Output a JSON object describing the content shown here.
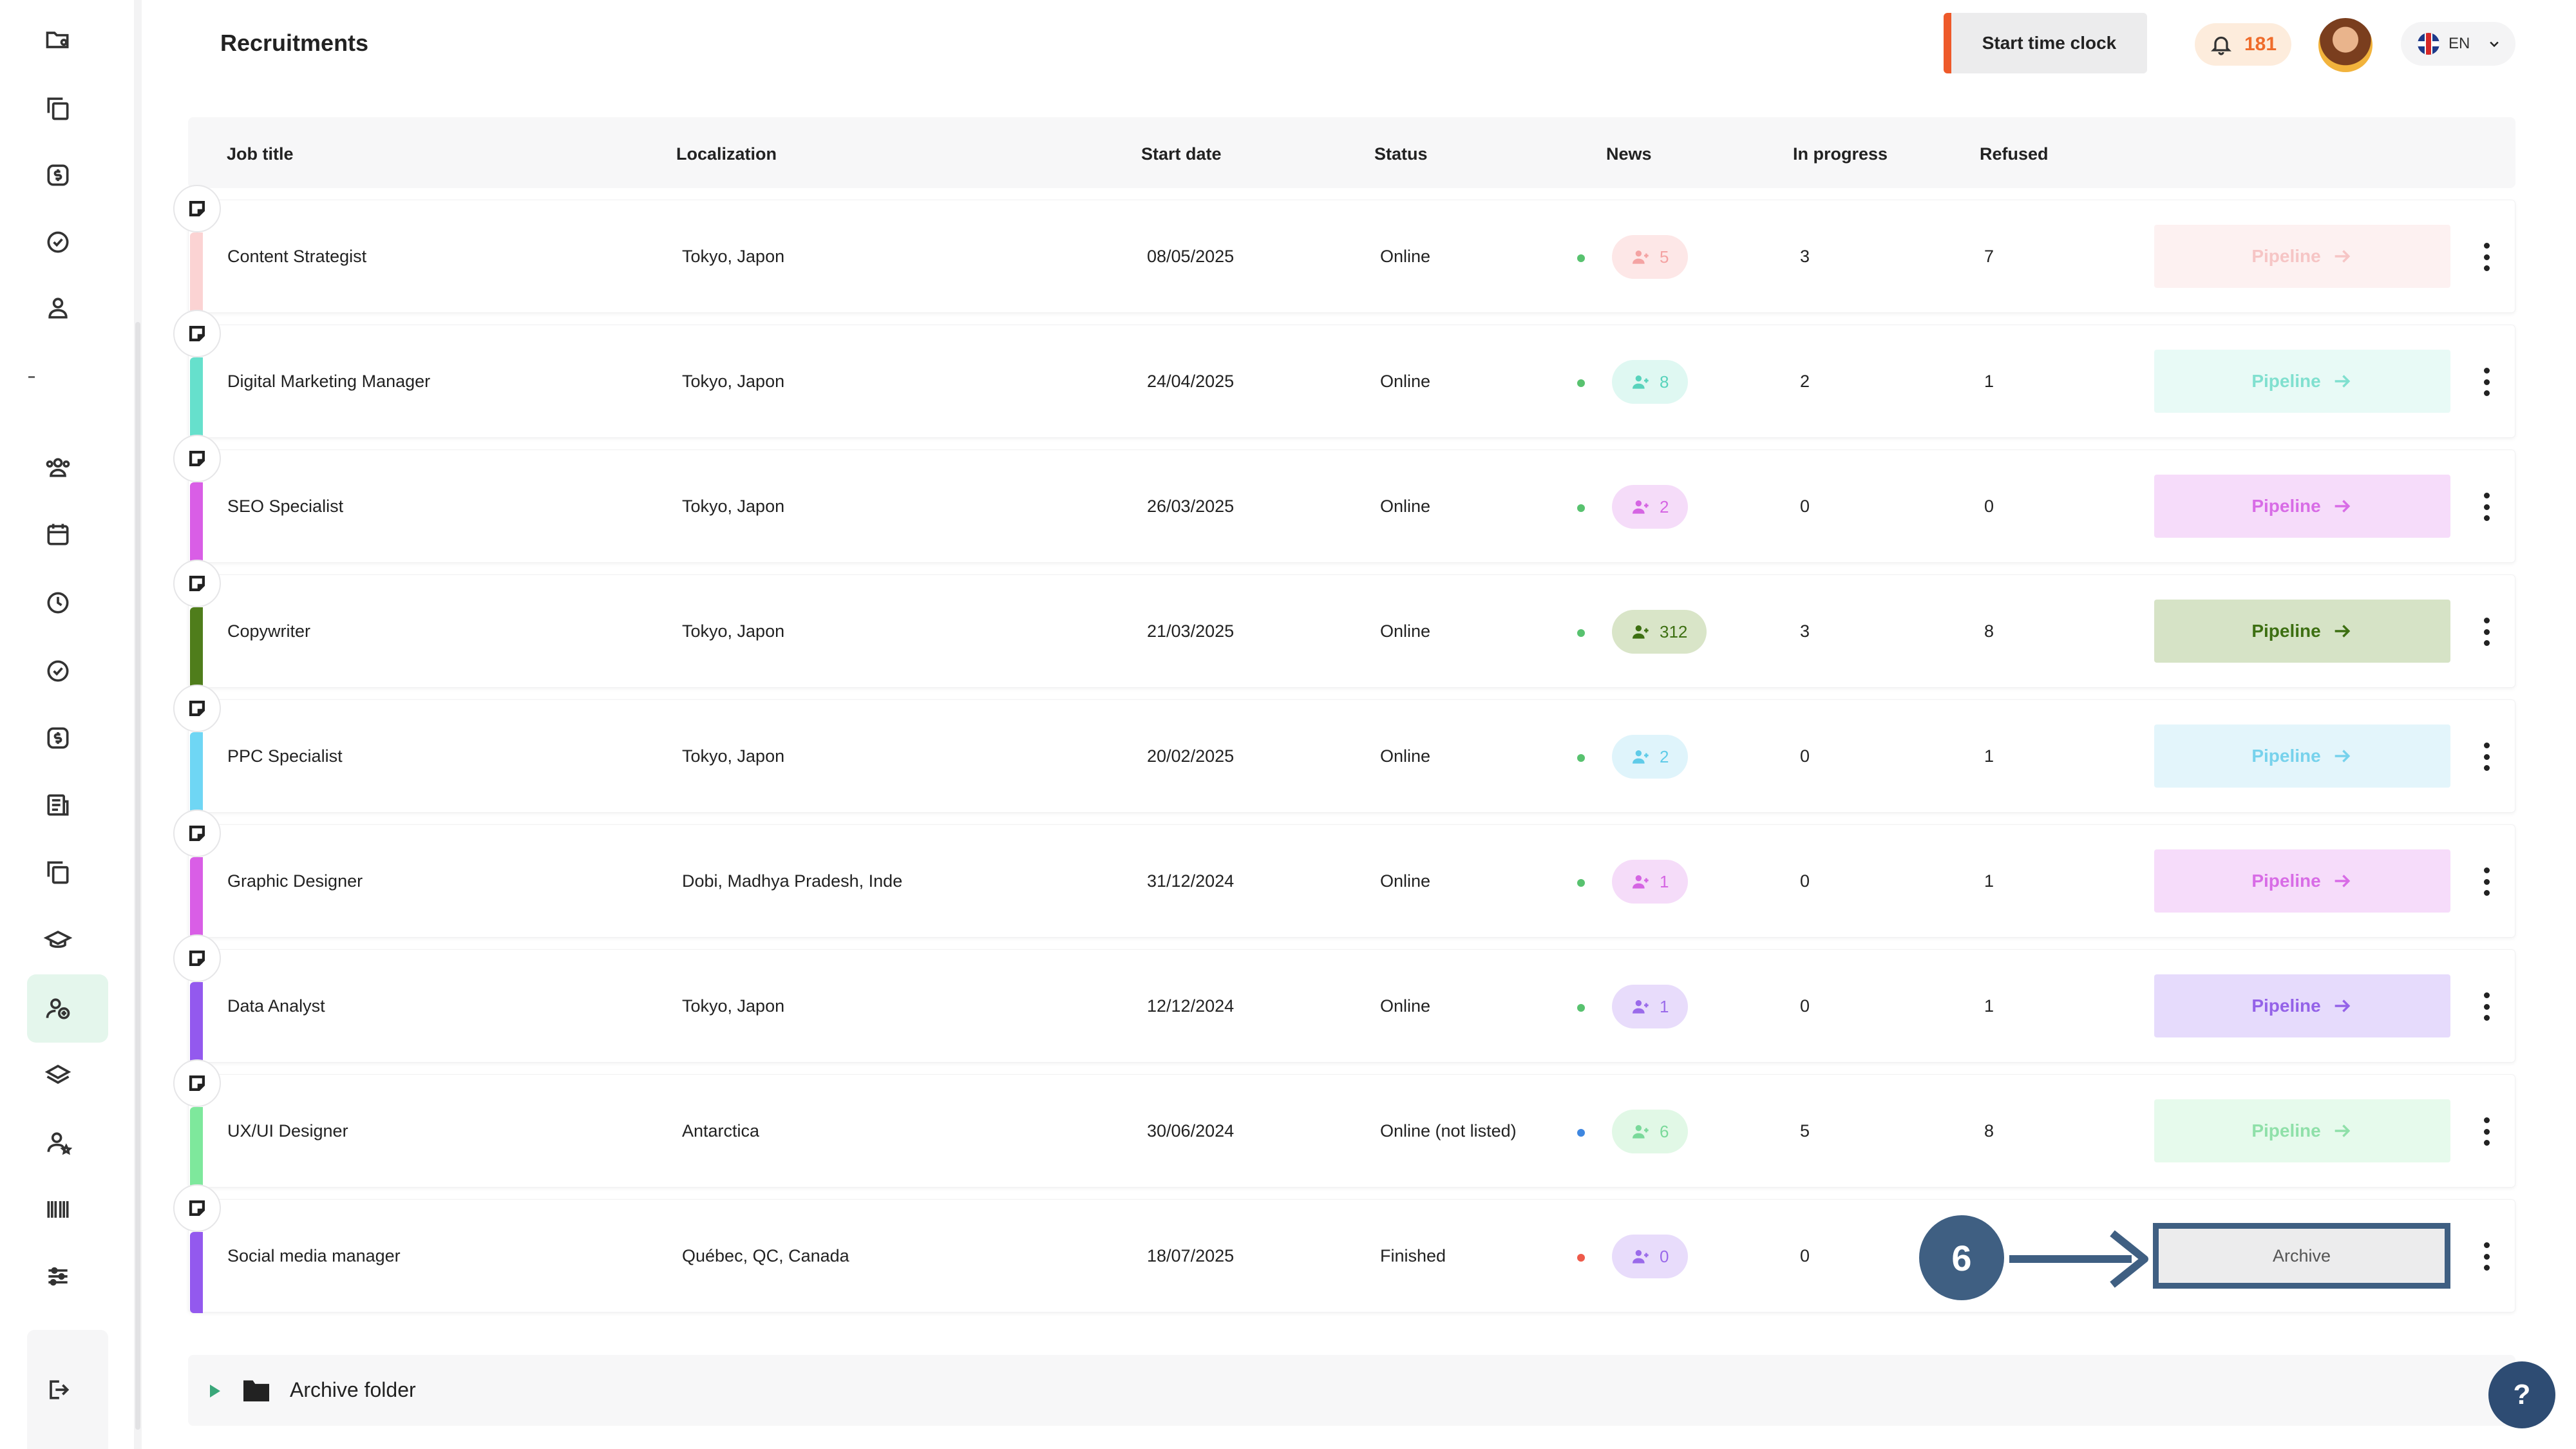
{
  "header": {
    "title": "Recruitments",
    "start_time_clock": "Start time clock",
    "notification_count": "181",
    "language": "EN"
  },
  "columns": {
    "job_title": "Job title",
    "localization": "Localization",
    "start_date": "Start date",
    "status": "Status",
    "news": "News",
    "in_progress": "In progress",
    "refused": "Refused"
  },
  "rows": [
    {
      "title": "Content Strategist",
      "location": "Tokyo, Japon",
      "date": "08/05/2025",
      "status": "Online",
      "news": "5",
      "in_progress": "3",
      "refused": "7",
      "action": "Pipeline",
      "color": "#fbd3d3",
      "pill_bg": "#fde7e7",
      "pill_fg": "#f4a3a3",
      "btn_bg": "#fdf1f1",
      "btn_fg": "#f6c5c5",
      "dot": "#58c26f"
    },
    {
      "title": "Digital Marketing Manager",
      "location": "Tokyo, Japon",
      "date": "24/04/2025",
      "status": "Online",
      "news": "8",
      "in_progress": "2",
      "refused": "1",
      "action": "Pipeline",
      "color": "#66e0cc",
      "pill_bg": "#dff8f2",
      "pill_fg": "#58d3bc",
      "btn_bg": "#e8faf6",
      "btn_fg": "#80e0cf",
      "dot": "#58c26f"
    },
    {
      "title": "SEO Specialist",
      "location": "Tokyo, Japon",
      "date": "26/03/2025",
      "status": "Online",
      "news": "2",
      "in_progress": "0",
      "refused": "0",
      "action": "Pipeline",
      "color": "#d95ee6",
      "pill_bg": "#f5dcf9",
      "pill_fg": "#d565e3",
      "btn_bg": "#f6dcfa",
      "btn_fg": "#d86ce6",
      "dot": "#58c26f"
    },
    {
      "title": "Copywriter",
      "location": "Tokyo, Japon",
      "date": "21/03/2025",
      "status": "Online",
      "news": "312",
      "in_progress": "3",
      "refused": "8",
      "action": "Pipeline",
      "color": "#4f7d1b",
      "pill_bg": "#d9e5c8",
      "pill_fg": "#3d6f12",
      "btn_bg": "#d6e3c6",
      "btn_fg": "#3d6f12",
      "dot": "#58c26f"
    },
    {
      "title": "PPC Specialist",
      "location": "Tokyo, Japon",
      "date": "20/02/2025",
      "status": "Online",
      "news": "2",
      "in_progress": "0",
      "refused": "1",
      "action": "Pipeline",
      "color": "#6fd6f4",
      "pill_bg": "#dff4fb",
      "pill_fg": "#5fcbe8",
      "btn_bg": "#e3f5fb",
      "btn_fg": "#77d2ec",
      "dot": "#58c26f"
    },
    {
      "title": "Graphic Designer",
      "location": "Dobi, Madhya Pradesh, Inde",
      "date": "31/12/2024",
      "status": "Online",
      "news": "1",
      "in_progress": "0",
      "refused": "1",
      "action": "Pipeline",
      "color": "#d95ee6",
      "pill_bg": "#f5dcf9",
      "pill_fg": "#d565e3",
      "btn_bg": "#f6dcfa",
      "btn_fg": "#d86ce6",
      "dot": "#58c26f"
    },
    {
      "title": "Data Analyst",
      "location": "Tokyo, Japon",
      "date": "12/12/2024",
      "status": "Online",
      "news": "1",
      "in_progress": "0",
      "refused": "1",
      "action": "Pipeline",
      "color": "#9359ee",
      "pill_bg": "#e8dcfb",
      "pill_fg": "#9a6aea",
      "btn_bg": "#e6dbfc",
      "btn_fg": "#9462e8",
      "dot": "#58c26f"
    },
    {
      "title": "UX/UI Designer",
      "location": "Antarctica",
      "date": "30/06/2024",
      "status": "Online (not listed)",
      "news": "6",
      "in_progress": "5",
      "refused": "8",
      "action": "Pipeline",
      "color": "#7ee89c",
      "pill_bg": "#e1f8e6",
      "pill_fg": "#7ad99a",
      "btn_bg": "#e6faec",
      "btn_fg": "#8fe0a9",
      "dot": "#3f87e0"
    },
    {
      "title": "Social media manager",
      "location": "Québec, QC, Canada",
      "date": "18/07/2025",
      "status": "Finished",
      "news": "0",
      "in_progress": "0",
      "refused": "",
      "action": "Archive",
      "color": "#9359ee",
      "pill_bg": "#e8dcfb",
      "pill_fg": "#9a6aea",
      "btn_bg": "#ececed",
      "btn_fg": "#555555",
      "dot": "#ee5a4a"
    }
  ],
  "annotation": {
    "step": "6"
  },
  "archive_folder": {
    "label": "Archive folder"
  },
  "help": {
    "label": "?"
  },
  "sidebar": {
    "icons": [
      "folder-user-icon",
      "copy-icon",
      "dollar-icon",
      "check-circle-icon",
      "user-icon",
      "users-icon",
      "calendar-icon",
      "clock-icon",
      "check-circle-icon",
      "dollar-icon",
      "document-icon",
      "copy-icon",
      "graduation-cap-icon",
      "recruitment-icon",
      "layers-icon",
      "user-star-icon",
      "barcode-icon",
      "sliders-icon",
      "logout-icon"
    ]
  }
}
